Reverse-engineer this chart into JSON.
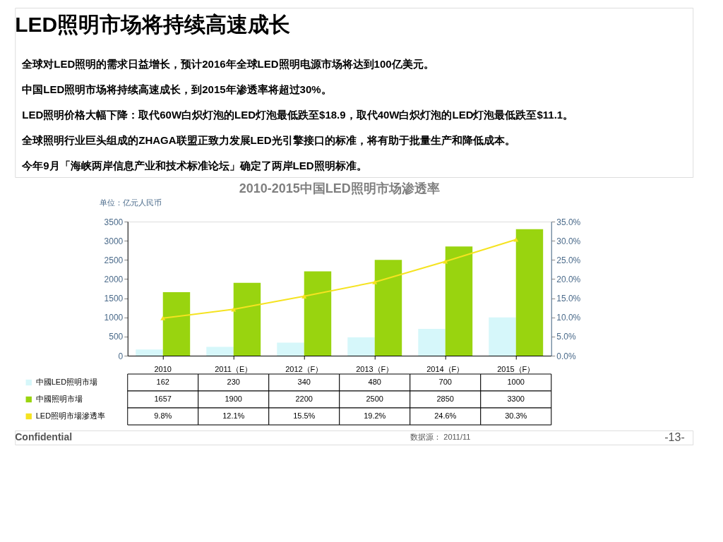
{
  "chart_data": {
    "type": "bar",
    "title": "2010-2015中国LED照明市场渗透率",
    "ylabel": "单位：亿元人民币",
    "categories": [
      "2010",
      "2011（E）",
      "2012（F）",
      "2013（F）",
      "2014（F）",
      "2015（F）"
    ],
    "series": [
      {
        "name": "中國LED照明市場",
        "color": "#d6f7fa",
        "values": [
          162,
          230,
          340,
          480,
          700,
          1000
        ]
      },
      {
        "name": "中國照明市場",
        "color": "#99d40f",
        "values": [
          1657,
          1900,
          2200,
          2500,
          2850,
          3300
        ]
      },
      {
        "name": "LED照明市場滲透率",
        "type": "line",
        "axis": "y2",
        "color": "#f5e320",
        "marker": "triangle",
        "values": [
          9.8,
          12.1,
          15.5,
          19.2,
          24.6,
          30.3
        ],
        "value_labels": [
          "9.8%",
          "12.1%",
          "15.5%",
          "19.2%",
          "24.6%",
          "30.3%"
        ]
      }
    ],
    "ylim": [
      0,
      3500
    ],
    "yticks": [
      0,
      500,
      1000,
      1500,
      2000,
      2500,
      3000,
      3500
    ],
    "y2lim": [
      0,
      35
    ],
    "y2ticks": [
      {
        "value": 0,
        "label": "0.0%"
      },
      {
        "value": 5,
        "label": "5.0%"
      },
      {
        "value": 10,
        "label": "10.0%"
      },
      {
        "value": 15,
        "label": "15.0%"
      },
      {
        "value": 20,
        "label": "20.0%"
      },
      {
        "value": 25,
        "label": "25.0%"
      },
      {
        "value": 30,
        "label": "30.0%"
      },
      {
        "value": 35,
        "label": "35.0%"
      }
    ],
    "data_labels": true,
    "legend": "bottom",
    "grid": false,
    "annotations": [
      "LED照明市场将持续高速成长",
      "全球对LED照明的需求日益增长，预计2016年全球LED照明电源市场将达到100亿美元。",
      "中国LED照明市场将持续高速成长，到2015年渗透率将超过30%。",
      "LED照明价格大幅下降：取代60W白炽灯泡的LED灯泡最低跌至$18.9，取代40W白炽灯泡的LED灯泡最低跌至$11.1。",
      "全球照明行业巨头组成的ZHAGA联盟正致力发展LED光引擎接口的标准，将有助于批量生产和降低成本。",
      "今年9月「海峡两岸信息产业和技术标准论坛」确定了两岸LED照明标准。",
      "Confidential",
      "数据源： 2011/11",
      "-13-"
    ]
  }
}
